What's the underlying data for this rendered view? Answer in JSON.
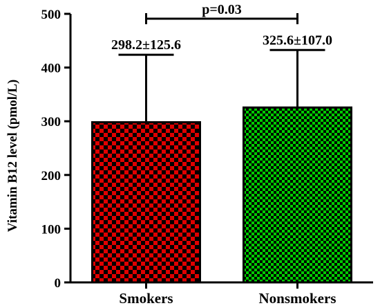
{
  "chart_data": {
    "type": "bar",
    "categories": [
      "Smokers",
      "Nonsmokers"
    ],
    "values": [
      298.2,
      325.6
    ],
    "errors": [
      125.6,
      107.0
    ],
    "data_labels": [
      "298.2±125.6",
      "325.6±107.0"
    ],
    "title": "",
    "xlabel": "",
    "ylabel": "Vitamin B12 level (pmol/L)",
    "ylim": [
      0,
      500
    ],
    "yticks": [
      0,
      100,
      200,
      300,
      400,
      500
    ],
    "ytick_labels": [
      "0",
      "100",
      "200",
      "300",
      "400",
      "500"
    ],
    "grid": false,
    "significance": {
      "between": [
        "Smokers",
        "Nonsmokers"
      ],
      "label": "p=0.03"
    },
    "colors": {
      "Smokers": "#e00000",
      "Nonsmokers": "#00cc00",
      "pattern_dark": "#000000",
      "axis": "#000000"
    },
    "patterns": {
      "Smokers": "checkerboard",
      "Nonsmokers": "fine-checkerboard"
    }
  }
}
